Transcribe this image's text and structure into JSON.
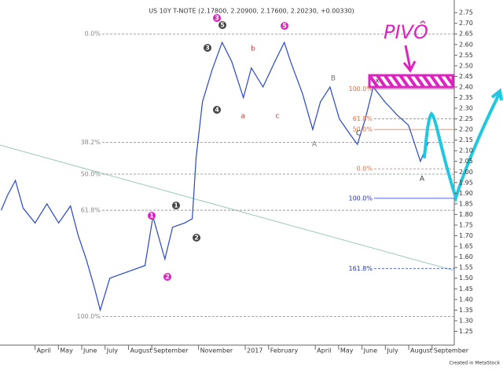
{
  "chart_data": {
    "type": "line",
    "title": "US 10Y T-NOTE (2.17800, 2.20900, 2.17600, 2.20230, +0.00330)",
    "footer": "Created in MetaStock",
    "handwritten": "PIVÔ",
    "color": "#2747c9",
    "x": [
      2.55,
      2.82,
      3.16,
      3.49,
      4.0,
      4.51,
      5.01,
      5.52,
      5.85,
      6.19,
      6.53,
      6.79,
      7.2,
      7.7,
      8.21,
      8.71,
      9.05,
      9.56,
      9.89,
      10.4,
      10.73,
      10.9,
      11.17,
      11.58,
      12.01,
      12.42,
      12.92,
      13.26,
      13.76,
      14.27,
      14.67,
      14.94,
      15.45,
      15.89,
      16.22,
      16.63,
      17.03,
      17.47,
      17.8,
      18.14,
      18.48,
      18.98,
      19.49,
      19.99,
      20.5,
      20.84
    ],
    "values": [
      1.82,
      1.89,
      1.96,
      1.83,
      1.76,
      1.85,
      1.76,
      1.84,
      1.7,
      1.59,
      1.46,
      1.35,
      1.5,
      1.52,
      1.54,
      1.56,
      1.79,
      1.59,
      1.74,
      1.76,
      1.78,
      2.07,
      2.33,
      2.48,
      2.61,
      2.52,
      2.35,
      2.49,
      2.4,
      2.52,
      2.61,
      2.52,
      2.37,
      2.2,
      2.33,
      2.4,
      2.25,
      2.18,
      2.13,
      2.25,
      2.4,
      2.33,
      2.27,
      2.22,
      2.05,
      2.14
    ],
    "xlim": [
      2.5,
      21.95
    ],
    "xticks": [
      {
        "value": 4,
        "label": "April"
      },
      {
        "value": 5,
        "label": "May"
      },
      {
        "value": 6,
        "label": "June"
      },
      {
        "value": 7,
        "label": "July"
      },
      {
        "value": 8,
        "label": "August"
      },
      {
        "value": 9,
        "label": "September"
      },
      {
        "value": 11,
        "label": "November"
      },
      {
        "value": 13,
        "label": "2017"
      },
      {
        "value": 14,
        "label": "February"
      },
      {
        "value": 16,
        "label": "April"
      },
      {
        "value": 17,
        "label": "May"
      },
      {
        "value": 18,
        "label": "June"
      },
      {
        "value": 19,
        "label": "July"
      },
      {
        "value": 20,
        "label": "August"
      },
      {
        "value": 21,
        "label": "September"
      }
    ],
    "ylim": [
      1.2,
      2.78
    ],
    "yticks": [
      2.75,
      {
        "value": 2.7,
        "label": "2.70"
      },
      2.65,
      {
        "value": 2.6,
        "label": "2.60"
      },
      2.55,
      {
        "value": 2.5,
        "label": "2.50"
      },
      2.45,
      {
        "value": 2.4,
        "label": "2.40"
      },
      2.35,
      {
        "value": 2.3,
        "label": "2.30"
      },
      2.25,
      {
        "value": 2.2,
        "label": "2.20"
      },
      2.15,
      {
        "value": 2.1,
        "label": "2.10"
      },
      2.05,
      {
        "value": 2,
        "label": "2.00"
      },
      1.95,
      {
        "value": 1.9,
        "label": "1.90"
      },
      1.85,
      {
        "value": 1.8,
        "label": "1.80"
      },
      1.75,
      {
        "value": 1.7,
        "label": "1.70"
      },
      1.65,
      {
        "value": 1.6,
        "label": "1.60"
      },
      1.55,
      {
        "value": 1.5,
        "label": "1.50"
      },
      1.45,
      {
        "value": 1.4,
        "label": "1.40"
      },
      1.35,
      {
        "value": 1.3,
        "label": "1.30"
      },
      1.25
    ],
    "fib_sets": [
      {
        "color": "#888888",
        "levels": [
          {
            "label": "0.0%",
            "value": 2.65
          },
          {
            "label": "38.2%",
            "value": 2.14
          },
          {
            "label": "50.0%",
            "value": 1.99
          },
          {
            "label": "61.8%",
            "value": 1.82
          },
          {
            "label": "100.0%",
            "value": 1.32
          }
        ]
      },
      {
        "color": "#e07040",
        "levels": [
          {
            "label": "100.0%",
            "value": 2.39
          },
          {
            "label": "61.8%",
            "value": 2.25
          },
          {
            "label": "50.0%",
            "value": 2.2
          },
          {
            "label": "0.0%",
            "value": 2.015
          }
        ]
      },
      {
        "color": "#2233cc",
        "levels": [
          {
            "label": "100.0%",
            "value": 1.876
          },
          {
            "label": "161.8%",
            "value": 1.546
          }
        ]
      }
    ],
    "wave_labels": [
      "1",
      "2",
      "3",
      "5",
      "1",
      "2",
      "3",
      "4",
      "5",
      "a",
      "b",
      "c",
      "B",
      "A",
      "C",
      "x",
      "A"
    ]
  }
}
